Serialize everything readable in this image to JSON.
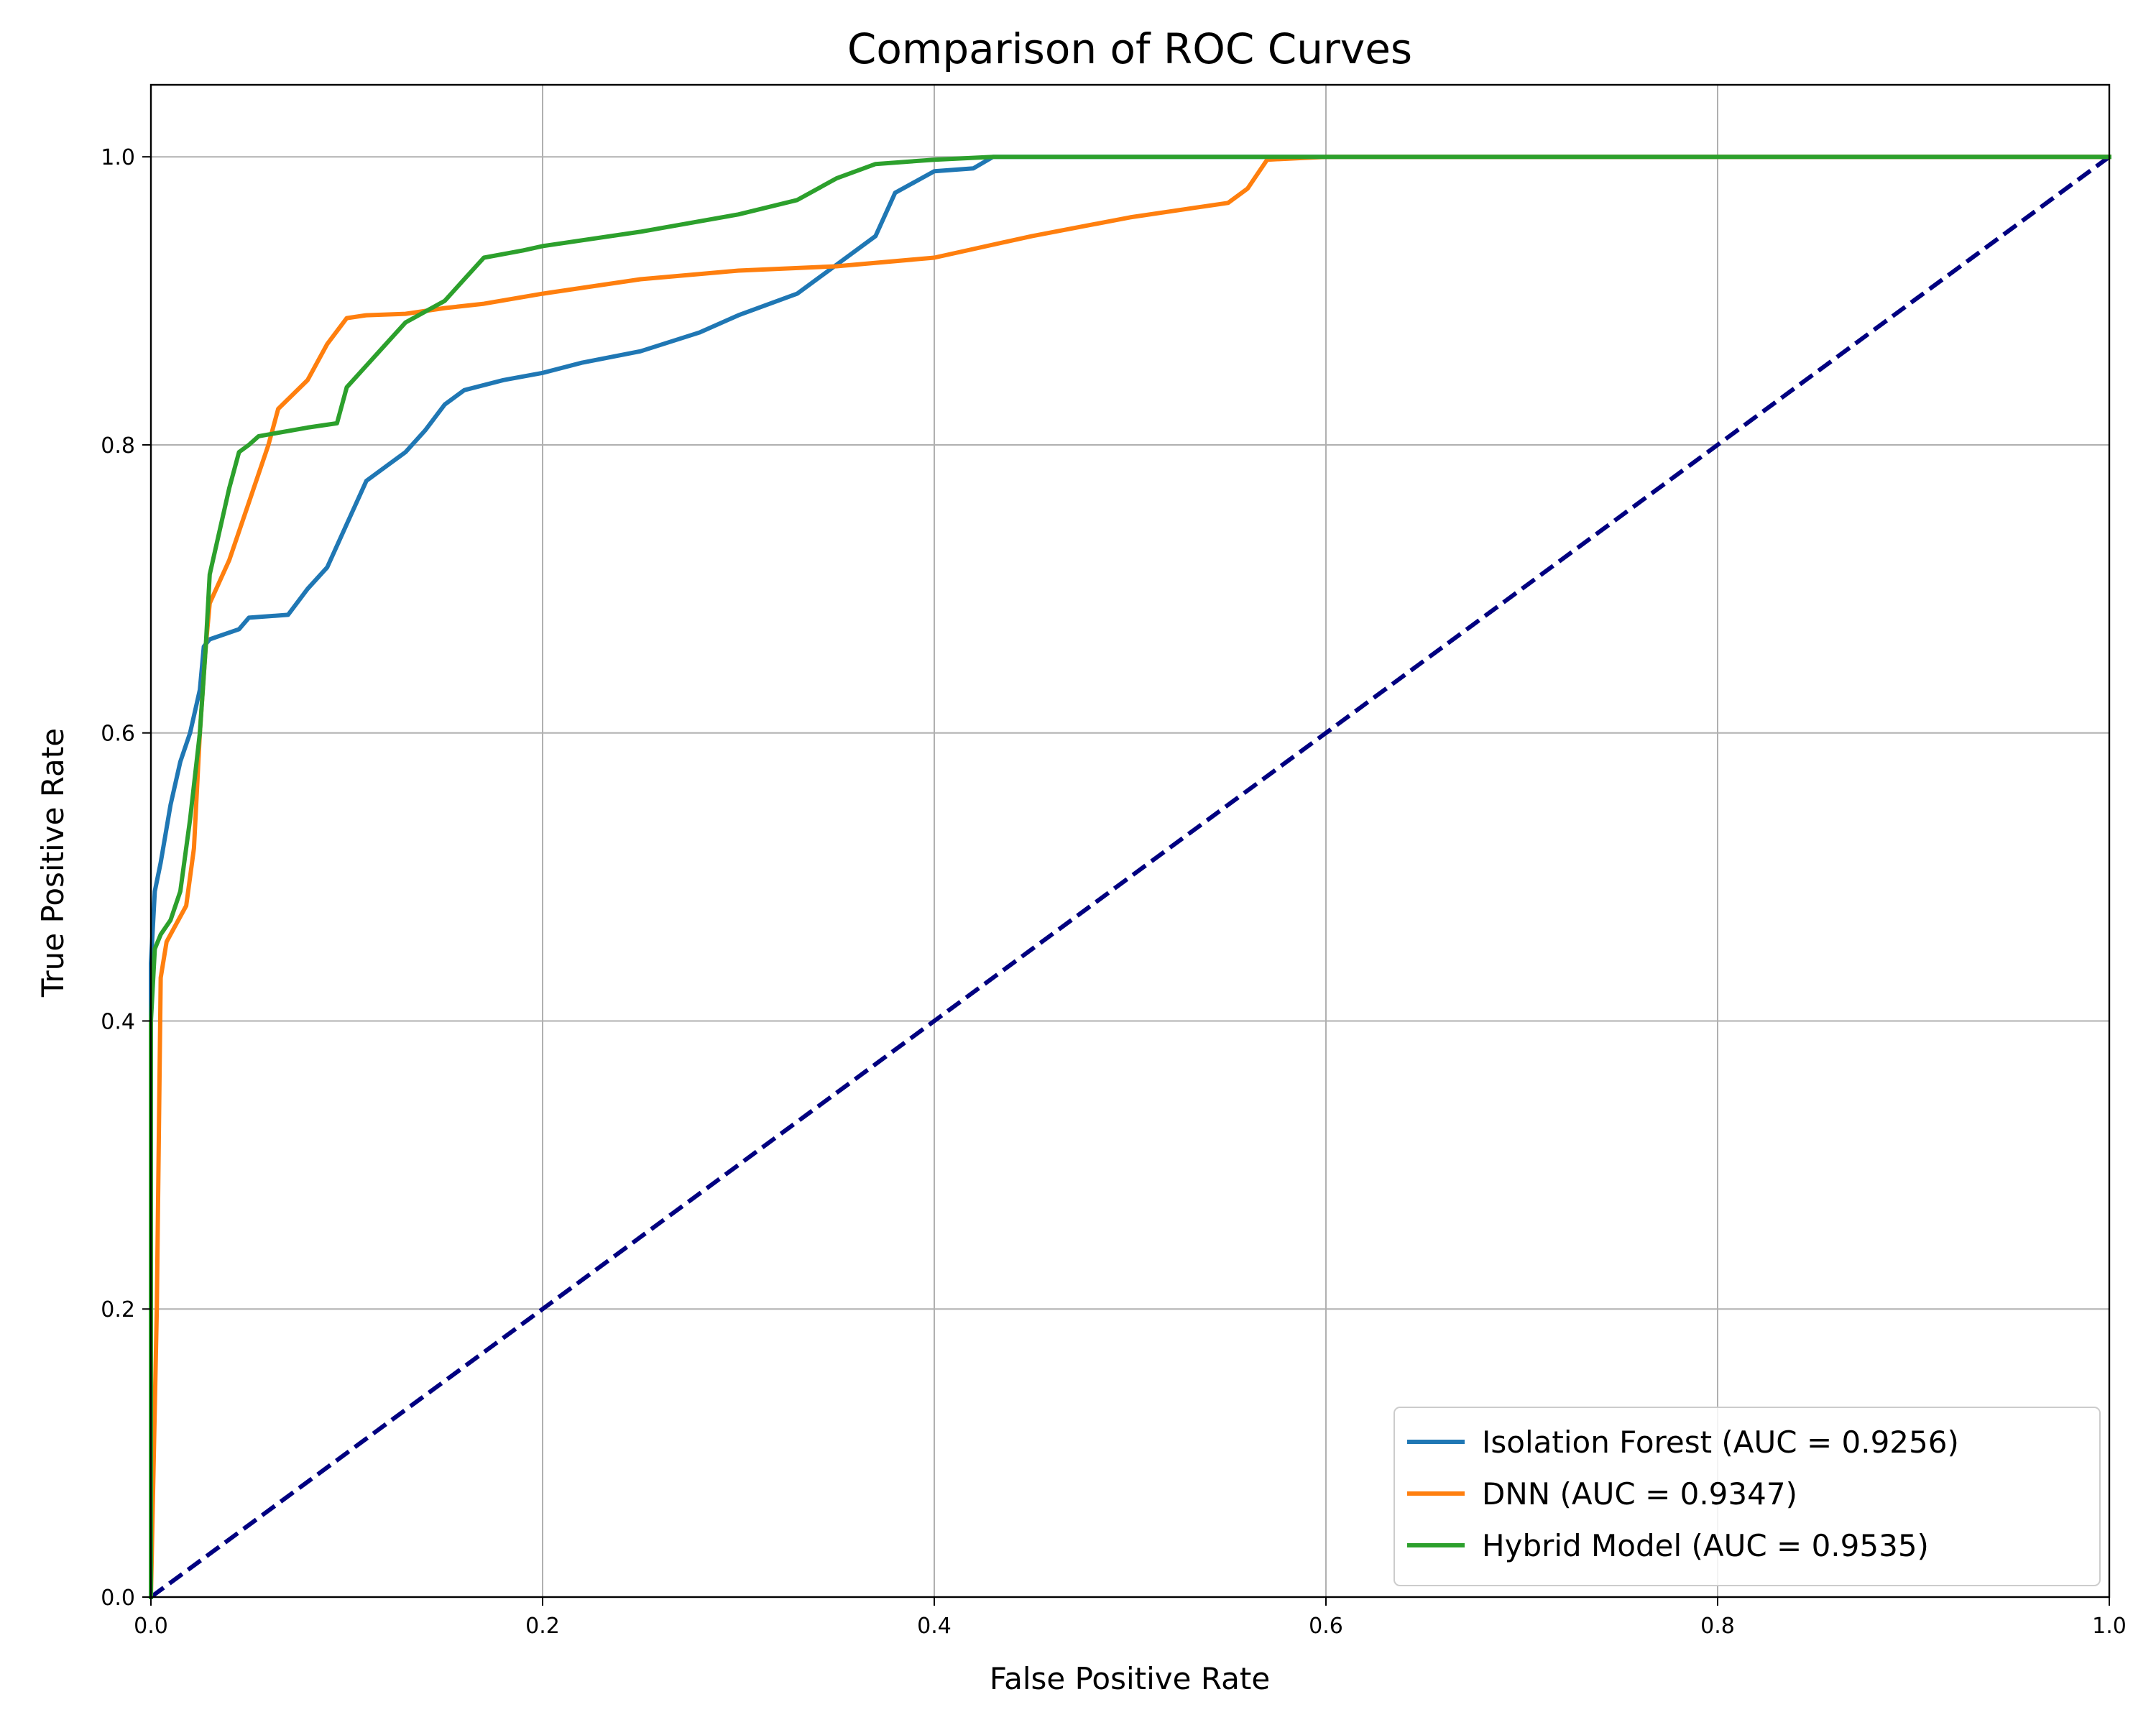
{
  "chart_data": {
    "type": "line",
    "title": "Comparison of ROC Curves",
    "xlabel": "False Positive Rate",
    "ylabel": "True Positive Rate",
    "xlim": [
      0.0,
      1.0
    ],
    "ylim": [
      0.0,
      1.05
    ],
    "xticks": [
      "0.0",
      "0.2",
      "0.4",
      "0.6",
      "0.8",
      "1.0"
    ],
    "yticks": [
      "0.0",
      "0.2",
      "0.4",
      "0.6",
      "0.8",
      "1.0"
    ],
    "grid": true,
    "legend_position": "lower-right",
    "series": [
      {
        "name": "Isolation Forest (AUC = 0.9256)",
        "color": "#1f77b4",
        "x": [
          0.0,
          0.0,
          0.002,
          0.005,
          0.01,
          0.015,
          0.02,
          0.025,
          0.027,
          0.03,
          0.045,
          0.05,
          0.07,
          0.08,
          0.09,
          0.1,
          0.11,
          0.12,
          0.13,
          0.14,
          0.15,
          0.155,
          0.16,
          0.18,
          0.2,
          0.22,
          0.25,
          0.28,
          0.3,
          0.33,
          0.35,
          0.37,
          0.38,
          0.4,
          0.42,
          0.43,
          0.45,
          1.0
        ],
        "y": [
          0.0,
          0.44,
          0.49,
          0.51,
          0.55,
          0.58,
          0.6,
          0.63,
          0.66,
          0.665,
          0.672,
          0.68,
          0.682,
          0.7,
          0.715,
          0.745,
          0.775,
          0.785,
          0.795,
          0.81,
          0.828,
          0.833,
          0.838,
          0.845,
          0.85,
          0.857,
          0.865,
          0.878,
          0.89,
          0.905,
          0.925,
          0.945,
          0.975,
          0.99,
          0.992,
          1.0,
          1.0,
          1.0
        ]
      },
      {
        "name": "DNN (AUC = 0.9347)",
        "color": "#ff7f0e",
        "x": [
          0.0,
          0.003,
          0.005,
          0.008,
          0.012,
          0.018,
          0.022,
          0.025,
          0.028,
          0.03,
          0.04,
          0.05,
          0.06,
          0.065,
          0.08,
          0.09,
          0.1,
          0.11,
          0.13,
          0.15,
          0.17,
          0.2,
          0.25,
          0.3,
          0.35,
          0.4,
          0.45,
          0.5,
          0.52,
          0.55,
          0.56,
          0.57,
          0.6,
          1.0
        ],
        "y": [
          0.0,
          0.2,
          0.43,
          0.455,
          0.465,
          0.48,
          0.52,
          0.6,
          0.66,
          0.69,
          0.72,
          0.76,
          0.8,
          0.825,
          0.845,
          0.87,
          0.888,
          0.89,
          0.891,
          0.895,
          0.898,
          0.905,
          0.915,
          0.921,
          0.924,
          0.93,
          0.945,
          0.958,
          0.962,
          0.968,
          0.978,
          0.998,
          1.0,
          1.0
        ]
      },
      {
        "name": "Hybrid Model (AUC = 0.9535)",
        "color": "#2ca02c",
        "x": [
          0.0,
          0.0,
          0.002,
          0.005,
          0.01,
          0.015,
          0.02,
          0.025,
          0.028,
          0.03,
          0.035,
          0.04,
          0.045,
          0.05,
          0.055,
          0.08,
          0.095,
          0.1,
          0.12,
          0.13,
          0.15,
          0.16,
          0.17,
          0.19,
          0.2,
          0.25,
          0.3,
          0.33,
          0.35,
          0.37,
          0.4,
          0.43,
          0.45,
          1.0
        ],
        "y": [
          0.0,
          0.4,
          0.45,
          0.46,
          0.47,
          0.49,
          0.54,
          0.6,
          0.66,
          0.71,
          0.74,
          0.77,
          0.795,
          0.8,
          0.806,
          0.812,
          0.815,
          0.84,
          0.87,
          0.885,
          0.9,
          0.915,
          0.93,
          0.935,
          0.938,
          0.948,
          0.96,
          0.97,
          0.985,
          0.995,
          0.998,
          1.0,
          1.0,
          1.0
        ]
      }
    ],
    "reference_line": {
      "x": [
        0.0,
        1.0
      ],
      "y": [
        0.0,
        1.0
      ],
      "color": "#000080",
      "style": "dashed"
    }
  }
}
